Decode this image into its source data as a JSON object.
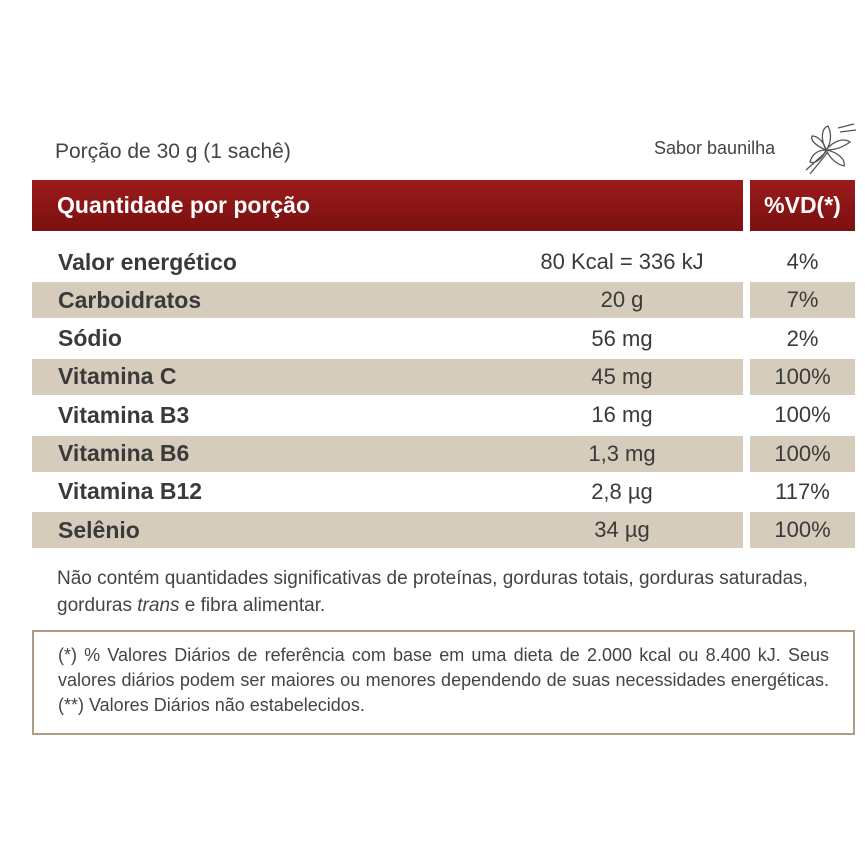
{
  "header": {
    "portion": "Porção de 30 g (1 sachê)",
    "flavor": "Sabor baunilha"
  },
  "table": {
    "columns": [
      "Quantidade por porção",
      "%VD(*)"
    ],
    "rows": [
      [
        "Valor energético",
        "80 Kcal = 336 kJ",
        "4%"
      ],
      [
        "Carboidratos",
        "20 g",
        "7%"
      ],
      [
        "Sódio",
        "56 mg",
        "2%"
      ],
      [
        "Vitamina C",
        "45 mg",
        "100%"
      ],
      [
        "Vitamina B3",
        "16 mg",
        "100%"
      ],
      [
        "Vitamina B6",
        "1,3 mg",
        "100%"
      ],
      [
        "Vitamina B12",
        "2,8 µg",
        "117%"
      ],
      [
        "Selênio",
        "34 µg",
        "100%"
      ]
    ]
  },
  "note": {
    "before": "Não contém quantidades significativas de proteínas, gorduras totais, gorduras saturadas, gorduras ",
    "italic": "trans",
    "after": " e fibra alimentar."
  },
  "footnote": "(*) % Valores Diários de referência com base em uma dieta de 2.000 kcal ou 8.400 kJ. Seus valores diários podem ser maiores ou menores dependendo de suas necessidades energéticas. (**) Valores Diários não estabelecidos."
}
